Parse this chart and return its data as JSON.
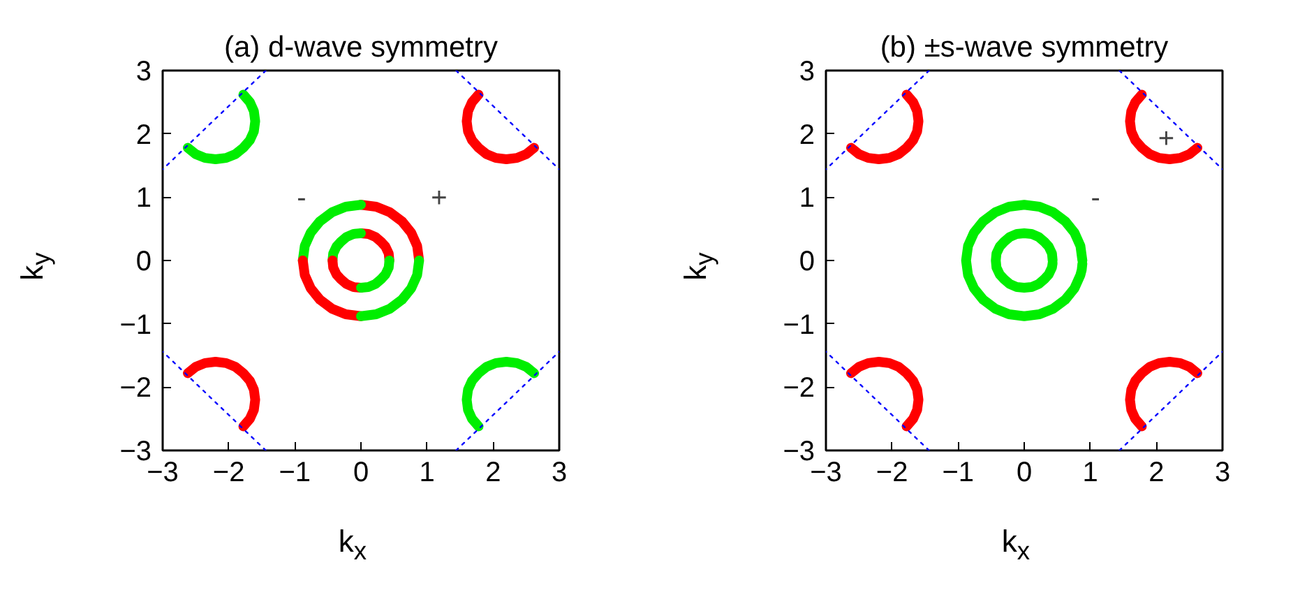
{
  "chart_data": [
    {
      "type": "line",
      "title": "(a) d-wave symmetry",
      "xlabel": "k$_{x}$",
      "ylabel": "k$_{y}$",
      "xlim": [
        -3,
        3
      ],
      "ylim": [
        -3,
        3
      ],
      "xticks": [
        -3,
        -2,
        -1,
        0,
        1,
        2,
        3
      ],
      "yticks": [
        -3,
        -2,
        -1,
        0,
        1,
        2,
        3
      ],
      "grid": false,
      "marker": "none",
      "annotations": [
        "-",
        "+"
      ],
      "series": [
        {
          "color": "#ff0000",
          "x": [
            0.88,
            0.85,
            0.76,
            0.62,
            0.44,
            0.23,
            0
          ],
          "values": [
            0,
            0.23,
            0.44,
            0.62,
            0.76,
            0.85,
            0.88
          ]
        },
        {
          "color": "#00ee00",
          "x": [
            0,
            -0.23,
            -0.44,
            -0.62,
            -0.76,
            -0.85,
            -0.88
          ],
          "values": [
            0.88,
            0.85,
            0.76,
            0.62,
            0.44,
            0.23,
            0
          ]
        },
        {
          "color": "#ff0000",
          "x": [
            -0.88,
            -0.85,
            -0.76,
            -0.62,
            -0.44,
            -0.23,
            0
          ],
          "values": [
            0,
            -0.23,
            -0.44,
            -0.62,
            -0.76,
            -0.85,
            -0.88
          ]
        },
        {
          "color": "#00ee00",
          "x": [
            0,
            0.23,
            0.44,
            0.62,
            0.76,
            0.85,
            0.88
          ],
          "values": [
            -0.88,
            -0.85,
            -0.76,
            -0.62,
            -0.44,
            -0.23,
            0
          ]
        },
        {
          "color": "#ff0000",
          "x": [
            0.43,
            0.42,
            0.37,
            0.3,
            0.22,
            0.11,
            0
          ],
          "values": [
            0,
            0.11,
            0.22,
            0.3,
            0.37,
            0.42,
            0.43
          ]
        },
        {
          "color": "#00ee00",
          "x": [
            0,
            -0.11,
            -0.22,
            -0.3,
            -0.37,
            -0.42,
            -0.43
          ],
          "values": [
            0.43,
            0.42,
            0.37,
            0.3,
            0.22,
            0.11,
            0
          ]
        },
        {
          "color": "#ff0000",
          "x": [
            -0.43,
            -0.42,
            -0.37,
            -0.3,
            -0.22,
            -0.11,
            0
          ],
          "values": [
            0,
            -0.11,
            -0.22,
            -0.3,
            -0.37,
            -0.42,
            -0.43
          ]
        },
        {
          "color": "#00ee00",
          "x": [
            0,
            0.11,
            0.22,
            0.3,
            0.37,
            0.42,
            0.43
          ],
          "values": [
            -0.43,
            -0.42,
            -0.37,
            -0.3,
            -0.22,
            -0.11,
            0
          ]
        },
        {
          "color": "#ff0000",
          "x": [
            1.78,
            1.68,
            1.62,
            1.6,
            1.62,
            1.68,
            1.78,
            1.9,
            2.04,
            2.2,
            2.36,
            2.5,
            2.62
          ],
          "values": [
            2.62,
            2.5,
            2.36,
            2.2,
            2.04,
            1.9,
            1.78,
            1.68,
            1.62,
            1.6,
            1.62,
            1.68,
            1.78
          ]
        },
        {
          "color": "#00ee00",
          "x": [
            -1.78,
            -1.68,
            -1.62,
            -1.6,
            -1.62,
            -1.68,
            -1.78,
            -1.9,
            -2.04,
            -2.2,
            -2.36,
            -2.5,
            -2.62
          ],
          "values": [
            2.62,
            2.5,
            2.36,
            2.2,
            2.04,
            1.9,
            1.78,
            1.68,
            1.62,
            1.6,
            1.62,
            1.68,
            1.78
          ]
        },
        {
          "color": "#00ee00",
          "x": [
            1.78,
            1.68,
            1.62,
            1.6,
            1.62,
            1.68,
            1.78,
            1.9,
            2.04,
            2.2,
            2.36,
            2.5,
            2.62
          ],
          "values": [
            -2.62,
            -2.5,
            -2.36,
            -2.2,
            -2.04,
            -1.9,
            -1.78,
            -1.68,
            -1.62,
            -1.6,
            -1.62,
            -1.68,
            -1.78
          ]
        },
        {
          "color": "#ff0000",
          "x": [
            -1.78,
            -1.68,
            -1.62,
            -1.6,
            -1.62,
            -1.68,
            -1.78,
            -1.9,
            -2.04,
            -2.2,
            -2.36,
            -2.5,
            -2.62
          ],
          "values": [
            -2.62,
            -2.5,
            -2.36,
            -2.2,
            -2.04,
            -1.9,
            -1.78,
            -1.68,
            -1.62,
            -1.6,
            -1.62,
            -1.68,
            -1.78
          ]
        },
        {
          "color": "#0000ff",
          "line_style": "dotted",
          "x": [
            1.44,
            3
          ],
          "values": [
            3,
            1.44
          ]
        },
        {
          "color": "#0000ff",
          "line_style": "dotted",
          "x": [
            -1.44,
            -3
          ],
          "values": [
            3,
            1.44
          ]
        },
        {
          "color": "#0000ff",
          "line_style": "dotted",
          "x": [
            1.44,
            3
          ],
          "values": [
            -3,
            -1.44
          ]
        },
        {
          "color": "#0000ff",
          "line_style": "dotted",
          "x": [
            -1.44,
            -3
          ],
          "values": [
            -3,
            -1.44
          ]
        }
      ]
    },
    {
      "type": "line",
      "title": "(b) ±s-wave symmetry",
      "xlabel": "k$_{x}$",
      "ylabel": "k$_{y}$",
      "xlim": [
        -3,
        3
      ],
      "ylim": [
        -3,
        3
      ],
      "xticks": [
        -3,
        -2,
        -1,
        0,
        1,
        2,
        3
      ],
      "yticks": [
        -3,
        -2,
        -1,
        0,
        1,
        2,
        3
      ],
      "grid": false,
      "marker": "none",
      "annotations": [
        "-",
        "+"
      ],
      "series": [
        {
          "color": "#00ee00",
          "x": [
            0.88,
            0.85,
            0.76,
            0.62,
            0.44,
            0.23,
            0,
            -0.23,
            -0.44,
            -0.62,
            -0.76,
            -0.85,
            -0.88,
            -0.85,
            -0.76,
            -0.62,
            -0.44,
            -0.23,
            0,
            0.23,
            0.44,
            0.62,
            0.76,
            0.85,
            0.87,
            0.88
          ],
          "values": [
            0,
            0.23,
            0.44,
            0.62,
            0.76,
            0.85,
            0.88,
            0.85,
            0.76,
            0.62,
            0.44,
            0.23,
            0,
            -0.23,
            -0.44,
            -0.62,
            -0.76,
            -0.85,
            -0.88,
            -0.85,
            -0.76,
            -0.62,
            -0.44,
            -0.23,
            -0.15,
            -0.05
          ]
        },
        {
          "color": "#00ee00",
          "x": [
            0.43,
            0.42,
            0.37,
            0.3,
            0.22,
            0.11,
            0,
            -0.11,
            -0.22,
            -0.3,
            -0.37,
            -0.42,
            -0.43,
            -0.42,
            -0.37,
            -0.3,
            -0.22,
            -0.11,
            0,
            0.11,
            0.22,
            0.3,
            0.37,
            0.42,
            0.43
          ],
          "values": [
            0,
            0.11,
            0.22,
            0.3,
            0.37,
            0.42,
            0.43,
            0.42,
            0.37,
            0.3,
            0.22,
            0.11,
            0,
            -0.11,
            -0.22,
            -0.3,
            -0.37,
            -0.42,
            -0.43,
            -0.42,
            -0.37,
            -0.3,
            -0.22,
            -0.11,
            -0.04
          ]
        },
        {
          "color": "#ff0000",
          "x": [
            1.78,
            1.68,
            1.62,
            1.6,
            1.62,
            1.68,
            1.78,
            1.9,
            2.04,
            2.2,
            2.36,
            2.5,
            2.62
          ],
          "values": [
            2.62,
            2.5,
            2.36,
            2.2,
            2.04,
            1.9,
            1.78,
            1.68,
            1.62,
            1.6,
            1.62,
            1.68,
            1.78
          ]
        },
        {
          "color": "#ff0000",
          "x": [
            -1.78,
            -1.68,
            -1.62,
            -1.6,
            -1.62,
            -1.68,
            -1.78,
            -1.9,
            -2.04,
            -2.2,
            -2.36,
            -2.5,
            -2.62
          ],
          "values": [
            2.62,
            2.5,
            2.36,
            2.2,
            2.04,
            1.9,
            1.78,
            1.68,
            1.62,
            1.6,
            1.62,
            1.68,
            1.78
          ]
        },
        {
          "color": "#ff0000",
          "x": [
            1.78,
            1.68,
            1.62,
            1.6,
            1.62,
            1.68,
            1.78,
            1.9,
            2.04,
            2.2,
            2.36,
            2.5,
            2.62
          ],
          "values": [
            -2.62,
            -2.5,
            -2.36,
            -2.2,
            -2.04,
            -1.9,
            -1.78,
            -1.68,
            -1.62,
            -1.6,
            -1.62,
            -1.68,
            -1.78
          ]
        },
        {
          "color": "#ff0000",
          "x": [
            -1.78,
            -1.68,
            -1.62,
            -1.6,
            -1.62,
            -1.68,
            -1.78,
            -1.9,
            -2.04,
            -2.2,
            -2.36,
            -2.5,
            -2.62
          ],
          "values": [
            -2.62,
            -2.5,
            -2.36,
            -2.2,
            -2.04,
            -1.9,
            -1.78,
            -1.68,
            -1.62,
            -1.6,
            -1.62,
            -1.68,
            -1.78
          ]
        },
        {
          "color": "#0000ff",
          "line_style": "dotted",
          "x": [
            1.44,
            3
          ],
          "values": [
            3,
            1.44
          ]
        },
        {
          "color": "#0000ff",
          "line_style": "dotted",
          "x": [
            -1.44,
            -3
          ],
          "values": [
            3,
            1.44
          ]
        },
        {
          "color": "#0000ff",
          "line_style": "dotted",
          "x": [
            1.44,
            3
          ],
          "values": [
            -3,
            -1.44
          ]
        },
        {
          "color": "#0000ff",
          "line_style": "dotted",
          "x": [
            -1.44,
            -3
          ],
          "values": [
            -3,
            -1.44
          ]
        }
      ]
    }
  ]
}
